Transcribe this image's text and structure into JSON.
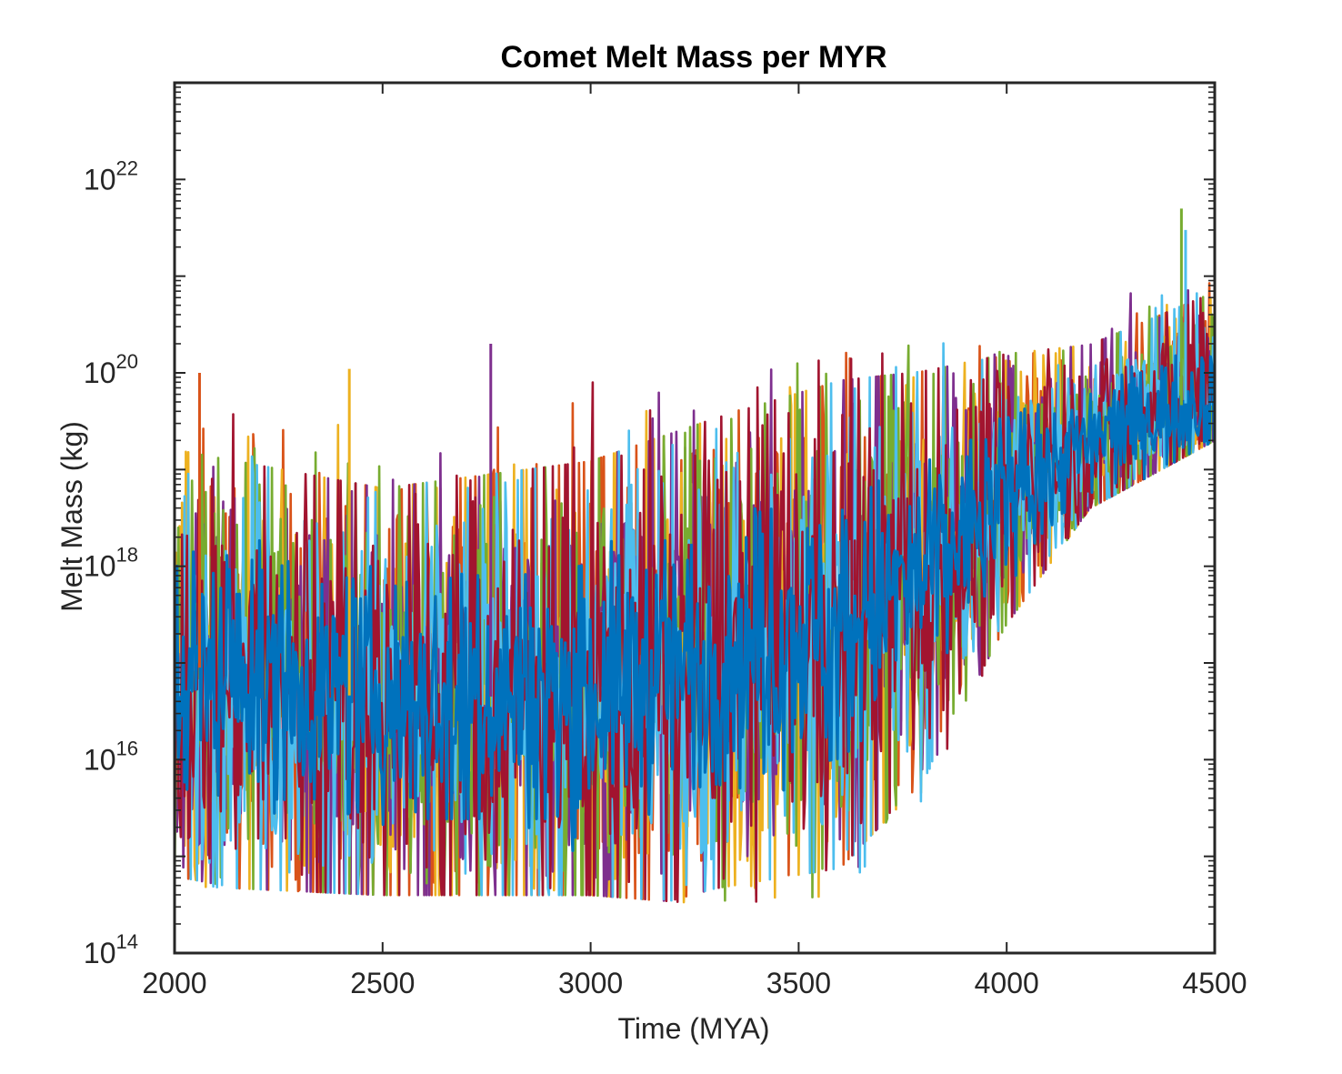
{
  "chart_data": {
    "type": "line",
    "title": "Comet Melt Mass per MYR",
    "xlabel": "Time (MYA)",
    "ylabel": "Melt Mass (kg)",
    "xlim": [
      2000,
      4500
    ],
    "ylim": [
      100000000000000.0,
      1e+23
    ],
    "yscale": "log",
    "grid": false,
    "legend": "none",
    "x_ticks": [
      {
        "value": 2000,
        "label": "2000"
      },
      {
        "value": 2500,
        "label": "2500"
      },
      {
        "value": 3000,
        "label": "3000"
      },
      {
        "value": 3500,
        "label": "3500"
      },
      {
        "value": 4000,
        "label": "4000"
      },
      {
        "value": 4500,
        "label": "4500"
      }
    ],
    "y_ticks": [
      {
        "value": 100000000000000.0,
        "base": "10",
        "exp": "14"
      },
      {
        "value": 1e+16,
        "base": "10",
        "exp": "16"
      },
      {
        "value": 1e+18,
        "base": "10",
        "exp": "18"
      },
      {
        "value": 1e+20,
        "base": "10",
        "exp": "20"
      },
      {
        "value": 1e+22,
        "base": "10",
        "exp": "22"
      }
    ],
    "series_colors": [
      "#D95319",
      "#EDB120",
      "#7E2F8E",
      "#77AC30",
      "#4DBEEE",
      "#A2142F",
      "#0072BD"
    ],
    "series_trend_log10": {
      "description_points_x": [
        2000,
        2500,
        3000,
        3300,
        3600,
        3800,
        4000,
        4200,
        4500
      ],
      "median": [
        17.0,
        16.6,
        16.7,
        17.1,
        17.4,
        17.9,
        18.8,
        19.3,
        19.8
      ],
      "lower": [
        14.7,
        14.6,
        14.6,
        14.5,
        14.6,
        15.6,
        17.4,
        18.6,
        19.3
      ],
      "upper": [
        19.6,
        19.5,
        19.9,
        19.9,
        20.2,
        20.3,
        20.5,
        20.8,
        21.6
      ]
    },
    "peak_values": [
      {
        "x": 2060,
        "y": 1e+20
      },
      {
        "x": 2420,
        "y": 1.1e+20
      },
      {
        "x": 2760,
        "y": 2e+20
      },
      {
        "x": 4420,
        "y": 5e+21
      },
      {
        "x": 4430,
        "y": 3e+21
      }
    ]
  }
}
